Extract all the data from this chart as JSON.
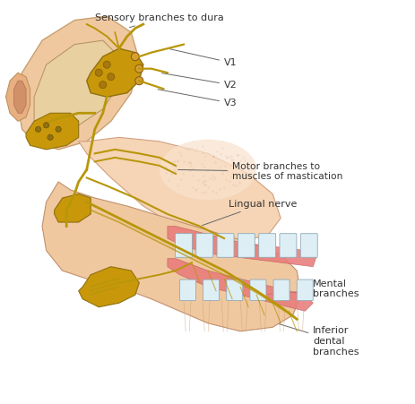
{
  "background_color": "#ffffff",
  "nerve_color": "#b8960a",
  "skin_color": "#f0c8a0",
  "skin_color_dark": "#e8b080",
  "skin_color_medium": "#efc090",
  "gum_color": "#e87878",
  "gum_color_light": "#f09090",
  "tooth_color": "#ddeef5",
  "ganglion_color": "#c8980a",
  "ganglion_edge": "#907010",
  "annotation_color": "#333333",
  "line_color": "#666666",
  "labels": {
    "sensory": "Sensory branches to dura",
    "v1": "V1",
    "v2": "V2",
    "v3": "V3",
    "motor": "Motor branches to\nmuscles of mastication",
    "lingual": "Lingual nerve",
    "mental": "Mental\nbranches",
    "inferior": "Inferior\ndental\nbranches"
  }
}
